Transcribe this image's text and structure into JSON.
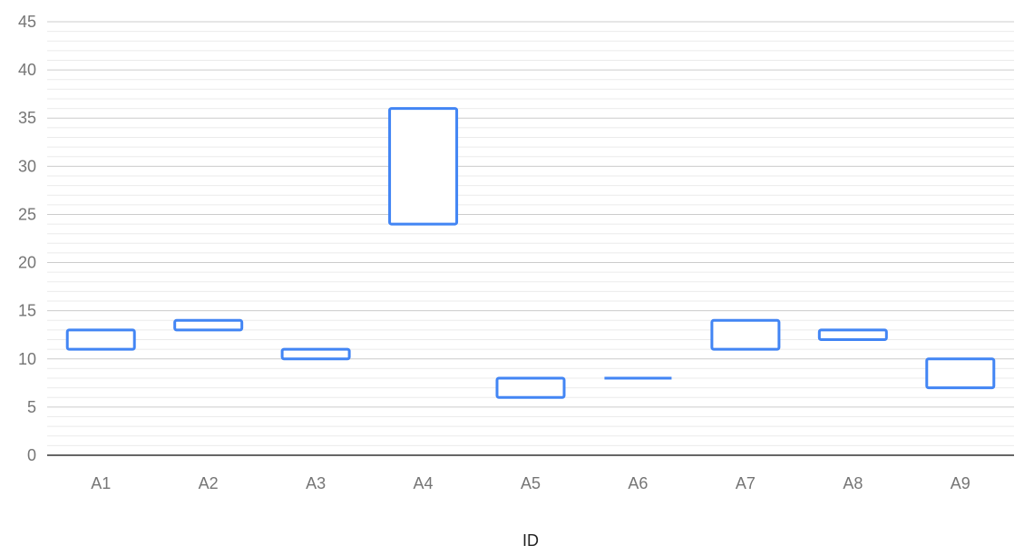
{
  "chart_data": {
    "type": "candlestick",
    "title": "",
    "xlabel": "ID",
    "ylabel": "",
    "ylim": [
      0,
      45
    ],
    "y_ticks": [
      0,
      5,
      10,
      15,
      20,
      25,
      30,
      35,
      40,
      45
    ],
    "minor_gridlines_per_major": 4,
    "grid": true,
    "legend": "none",
    "colors": {
      "series": "#4285f4",
      "major_grid": "#cccccc",
      "minor_grid": "#ebebeb",
      "baseline": "#333333",
      "tick_text": "#757575",
      "axis_title_text": "#222222"
    },
    "categories": [
      "A1",
      "A2",
      "A3",
      "A4",
      "A5",
      "A6",
      "A7",
      "A8",
      "A9"
    ],
    "series": [
      {
        "points": [
          {
            "x": "A1",
            "low": 11,
            "high": 13
          },
          {
            "x": "A2",
            "low": 13,
            "high": 14
          },
          {
            "x": "A3",
            "low": 10,
            "high": 11
          },
          {
            "x": "A4",
            "low": 24,
            "high": 36
          },
          {
            "x": "A5",
            "low": 6,
            "high": 8
          },
          {
            "x": "A6",
            "low": 8,
            "high": 8
          },
          {
            "x": "A7",
            "low": 11,
            "high": 14
          },
          {
            "x": "A8",
            "low": 12,
            "high": 13
          },
          {
            "x": "A9",
            "low": 7,
            "high": 10
          }
        ]
      }
    ]
  }
}
